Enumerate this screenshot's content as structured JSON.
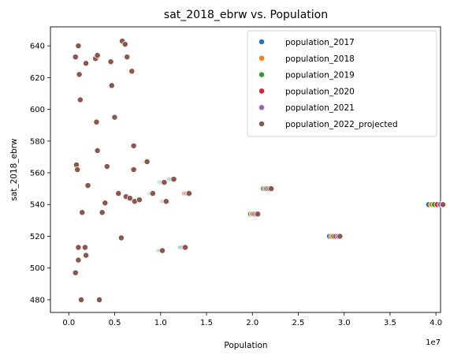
{
  "chart_data": {
    "type": "scatter",
    "title": "sat_2018_ebrw vs. Population",
    "xlabel": "Population",
    "ylabel": "sat_2018_ebrw",
    "x_offset_label": "1e7",
    "xlim": [
      -0.2,
      4.05
    ],
    "ylim": [
      472,
      652
    ],
    "x_ticks": [
      "0.0",
      "0.5",
      "1.0",
      "1.5",
      "2.0",
      "2.5",
      "3.0",
      "3.5",
      "4.0"
    ],
    "x_tick_values": [
      0.0,
      0.5,
      1.0,
      1.5,
      2.0,
      2.5,
      3.0,
      3.5,
      4.0
    ],
    "y_ticks": [
      "480",
      "500",
      "520",
      "540",
      "560",
      "580",
      "600",
      "620",
      "640"
    ],
    "y_tick_values": [
      480,
      500,
      520,
      540,
      560,
      580,
      600,
      620,
      640
    ],
    "legend_position": "top-right",
    "grid": false,
    "base_points": [
      [
        0.07,
        633
      ],
      [
        0.08,
        565
      ],
      [
        0.09,
        562
      ],
      [
        0.07,
        497
      ],
      [
        0.1,
        640
      ],
      [
        0.11,
        622
      ],
      [
        0.12,
        606
      ],
      [
        0.1,
        513
      ],
      [
        0.1,
        505
      ],
      [
        0.14,
        535
      ],
      [
        0.13,
        480
      ],
      [
        0.18,
        629
      ],
      [
        0.17,
        513
      ],
      [
        0.18,
        508
      ],
      [
        0.2,
        552
      ],
      [
        0.28,
        632
      ],
      [
        0.3,
        634
      ],
      [
        0.29,
        592
      ],
      [
        0.3,
        574
      ],
      [
        0.32,
        480
      ],
      [
        0.35,
        535
      ],
      [
        0.38,
        541
      ],
      [
        0.4,
        564
      ],
      [
        0.44,
        630
      ],
      [
        0.45,
        615
      ],
      [
        0.48,
        595
      ],
      [
        0.52,
        547
      ],
      [
        0.55,
        519
      ],
      [
        0.56,
        643
      ],
      [
        0.59,
        641
      ],
      [
        0.6,
        545
      ],
      [
        0.61,
        633
      ],
      [
        0.64,
        544
      ],
      [
        0.66,
        624
      ],
      [
        0.68,
        577
      ],
      [
        0.68,
        562
      ],
      [
        0.69,
        542
      ],
      [
        0.74,
        543
      ],
      [
        0.82,
        567
      ],
      [
        0.88,
        547
      ],
      [
        0.98,
        511
      ],
      [
        1.0,
        554
      ],
      [
        1.02,
        542
      ],
      [
        1.1,
        556
      ],
      [
        1.22,
        513
      ],
      [
        1.26,
        547
      ],
      [
        1.98,
        534
      ],
      [
        2.12,
        550
      ],
      [
        2.84,
        520
      ],
      [
        3.92,
        540
      ]
    ],
    "series": [
      {
        "name": "population_2017",
        "color": "#1f77b4",
        "growth": 0.0
      },
      {
        "name": "population_2018",
        "color": "#ff7f0e",
        "growth": 0.008
      },
      {
        "name": "population_2019",
        "color": "#2ca02c",
        "growth": 0.016
      },
      {
        "name": "population_2020",
        "color": "#d62728",
        "growth": 0.024
      },
      {
        "name": "population_2021",
        "color": "#9467bd",
        "growth": 0.032
      },
      {
        "name": "population_2022_projected",
        "color": "#8c564b",
        "growth": 0.04
      }
    ]
  }
}
